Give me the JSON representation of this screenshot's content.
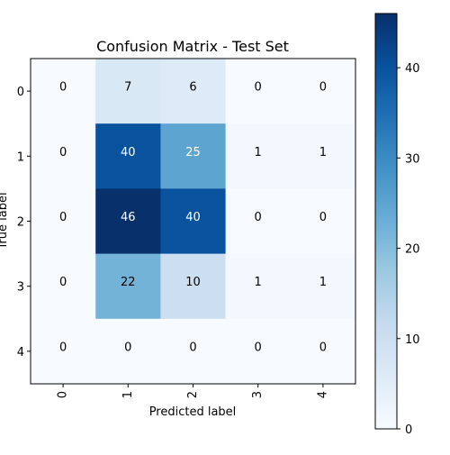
{
  "chart_data": {
    "type": "heatmap",
    "title": "Confusion Matrix - Test Set",
    "xlabel": "Predicted label",
    "ylabel": "True label",
    "x_tick_labels": [
      "0",
      "1",
      "2",
      "3",
      "4"
    ],
    "y_tick_labels": [
      "0",
      "1",
      "2",
      "3",
      "4"
    ],
    "matrix": [
      [
        0,
        7,
        6,
        0,
        0
      ],
      [
        0,
        40,
        25,
        1,
        1
      ],
      [
        0,
        46,
        40,
        0,
        0
      ],
      [
        0,
        22,
        10,
        1,
        1
      ],
      [
        0,
        0,
        0,
        0,
        0
      ]
    ],
    "colormap": "Blues",
    "vmin": 0,
    "vmax": 46,
    "colorbar_ticks": [
      0,
      10,
      20,
      30,
      40
    ],
    "colorbar_tick_labels": [
      "0",
      "10",
      "20",
      "30",
      "40"
    ],
    "colors": {
      "low": "#f7fbff",
      "high": "#08306b",
      "text_dark": "#000000",
      "text_light": "#ffffff"
    }
  }
}
